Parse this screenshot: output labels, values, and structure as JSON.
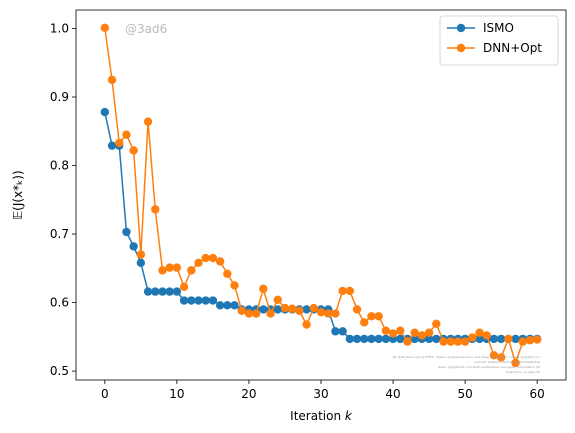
{
  "chart_data": {
    "type": "line",
    "xlabel": "Iteration",
    "xlabel_var": "k",
    "ylabel": "𝔼(J(x*ₖ))",
    "xlim": [
      -4,
      64
    ],
    "ylim": [
      0.487,
      1.027
    ],
    "xticks": [
      0,
      10,
      20,
      30,
      40,
      50,
      60
    ],
    "yticks": [
      0.5,
      0.6,
      0.7,
      0.8,
      0.9,
      1.0
    ],
    "ytick_labels": [
      "0.5",
      "0.6",
      "0.7",
      "0.8",
      "0.9",
      "1.0"
    ],
    "legend_position": "top-right",
    "grid": false,
    "watermark": "@3ad6",
    "footnote": [
      "By Kjetil Olsen Lye @ ETHZ <kjetil.o.lye@gmail.com> and Deep Ray @ EPFL <deep.ray@epfl.ch>",
      "Commit: 6a66d211fe31a5b230e3e3a6b5e6",
      "Repo: git@github.com:kjetil-lye/iterative_surrogate_optimization.git",
      "Hostname: eu-login-05"
    ],
    "series": [
      {
        "name": "ISMO",
        "color": "#1f77b4",
        "x": [
          0,
          1,
          2,
          3,
          4,
          5,
          6,
          7,
          8,
          9,
          10,
          11,
          12,
          13,
          14,
          15,
          16,
          17,
          18,
          19,
          20,
          21,
          22,
          23,
          24,
          25,
          26,
          27,
          28,
          29,
          30,
          31,
          32,
          33,
          34,
          35,
          36,
          37,
          38,
          39,
          40,
          41,
          42,
          43,
          44,
          45,
          46,
          47,
          48,
          49,
          50,
          51,
          52,
          53,
          54,
          55,
          56,
          57,
          58,
          59,
          60
        ],
        "values": [
          0.878,
          0.829,
          0.829,
          0.703,
          0.682,
          0.658,
          0.616,
          0.616,
          0.616,
          0.616,
          0.616,
          0.603,
          0.603,
          0.603,
          0.603,
          0.603,
          0.596,
          0.596,
          0.596,
          0.59,
          0.59,
          0.59,
          0.59,
          0.59,
          0.59,
          0.59,
          0.59,
          0.59,
          0.59,
          0.59,
          0.59,
          0.59,
          0.558,
          0.558,
          0.547,
          0.547,
          0.547,
          0.547,
          0.547,
          0.547,
          0.547,
          0.547,
          0.547,
          0.547,
          0.547,
          0.547,
          0.547,
          0.547,
          0.547,
          0.547,
          0.547,
          0.547,
          0.547,
          0.547,
          0.547,
          0.547,
          0.547,
          0.547,
          0.547,
          0.547,
          0.547
        ]
      },
      {
        "name": "DNN+Opt",
        "color": "#ff7f0e",
        "x": [
          0,
          1,
          2,
          3,
          4,
          5,
          6,
          7,
          8,
          9,
          10,
          11,
          12,
          13,
          14,
          15,
          16,
          17,
          18,
          19,
          20,
          21,
          22,
          23,
          24,
          25,
          26,
          27,
          28,
          29,
          30,
          31,
          32,
          33,
          34,
          35,
          36,
          37,
          38,
          39,
          40,
          41,
          42,
          43,
          44,
          45,
          46,
          47,
          48,
          49,
          50,
          51,
          52,
          53,
          54,
          55,
          56,
          57,
          58,
          59,
          60
        ],
        "values": [
          1.001,
          0.925,
          0.833,
          0.845,
          0.822,
          0.67,
          0.864,
          0.736,
          0.647,
          0.651,
          0.651,
          0.623,
          0.647,
          0.658,
          0.665,
          0.665,
          0.66,
          0.642,
          0.625,
          0.588,
          0.584,
          0.584,
          0.62,
          0.584,
          0.604,
          0.592,
          0.591,
          0.588,
          0.568,
          0.592,
          0.586,
          0.584,
          0.584,
          0.617,
          0.617,
          0.59,
          0.571,
          0.58,
          0.58,
          0.559,
          0.555,
          0.559,
          0.543,
          0.556,
          0.552,
          0.556,
          0.569,
          0.543,
          0.543,
          0.543,
          0.543,
          0.549,
          0.556,
          0.552,
          0.523,
          0.52,
          0.547,
          0.512,
          0.543,
          0.545,
          0.546
        ]
      }
    ]
  }
}
